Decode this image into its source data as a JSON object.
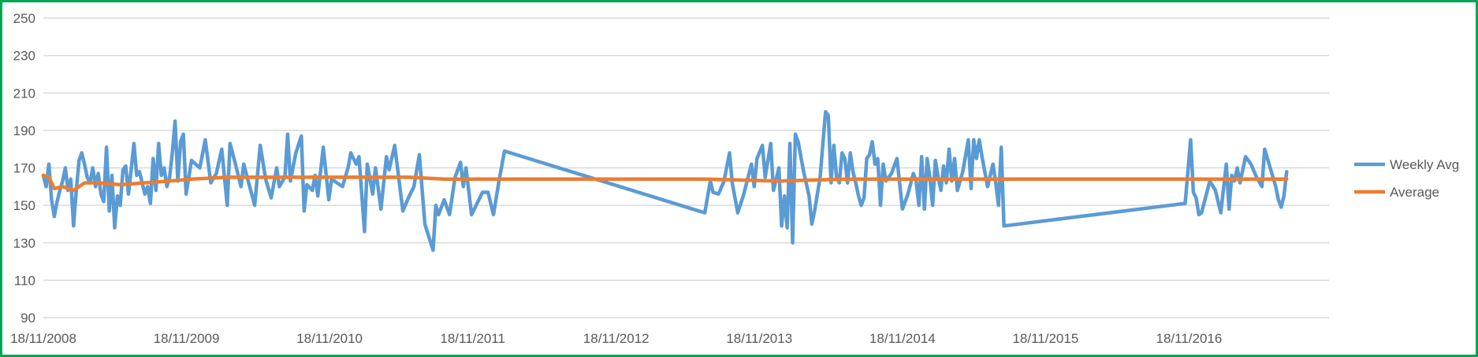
{
  "chart_data": {
    "type": "line",
    "title": "",
    "xlabel": "",
    "ylabel": "",
    "ylim": [
      90,
      250
    ],
    "yticks": [
      90,
      110,
      130,
      150,
      170,
      190,
      210,
      230,
      250
    ],
    "xticks": [
      "18/11/2008",
      "18/11/2009",
      "18/11/2010",
      "18/11/2011",
      "18/11/2012",
      "18/11/2013",
      "18/11/2014",
      "18/11/2015",
      "18/11/2016"
    ],
    "xlim": [
      "2008-11-18",
      "2017-11-10"
    ],
    "grid": true,
    "legend_position": "right",
    "series": [
      {
        "name": "Weekly Avg",
        "color": "#5b9bd5",
        "points": [
          [
            "2008-11-18",
            166
          ],
          [
            "2008-11-25",
            160
          ],
          [
            "2008-12-02",
            172
          ],
          [
            "2008-12-09",
            153
          ],
          [
            "2008-12-16",
            144
          ],
          [
            "2008-12-23",
            152
          ],
          [
            "2008-12-30",
            158
          ],
          [
            "2009-01-06",
            163
          ],
          [
            "2009-01-13",
            170
          ],
          [
            "2009-01-20",
            158
          ],
          [
            "2009-01-27",
            164
          ],
          [
            "2009-02-03",
            139
          ],
          [
            "2009-02-10",
            158
          ],
          [
            "2009-02-17",
            174
          ],
          [
            "2009-02-24",
            178
          ],
          [
            "2009-03-03",
            172
          ],
          [
            "2009-03-10",
            165
          ],
          [
            "2009-03-17",
            162
          ],
          [
            "2009-03-24",
            170
          ],
          [
            "2009-03-31",
            160
          ],
          [
            "2009-04-07",
            167
          ],
          [
            "2009-04-14",
            156
          ],
          [
            "2009-04-21",
            152
          ],
          [
            "2009-04-28",
            181
          ],
          [
            "2009-05-05",
            147
          ],
          [
            "2009-05-12",
            166
          ],
          [
            "2009-05-19",
            138
          ],
          [
            "2009-05-26",
            155
          ],
          [
            "2009-06-02",
            150
          ],
          [
            "2009-06-09",
            169
          ],
          [
            "2009-06-16",
            171
          ],
          [
            "2009-06-23",
            156
          ],
          [
            "2009-06-30",
            169
          ],
          [
            "2009-07-07",
            183
          ],
          [
            "2009-07-14",
            166
          ],
          [
            "2009-07-21",
            168
          ],
          [
            "2009-07-28",
            162
          ],
          [
            "2009-08-04",
            156
          ],
          [
            "2009-08-11",
            160
          ],
          [
            "2009-08-18",
            151
          ],
          [
            "2009-08-25",
            175
          ],
          [
            "2009-09-01",
            158
          ],
          [
            "2009-09-08",
            183
          ],
          [
            "2009-09-15",
            166
          ],
          [
            "2009-09-22",
            170
          ],
          [
            "2009-09-29",
            160
          ],
          [
            "2009-10-06",
            165
          ],
          [
            "2009-10-13",
            178
          ],
          [
            "2009-10-20",
            195
          ],
          [
            "2009-10-27",
            163
          ],
          [
            "2009-11-03",
            184
          ],
          [
            "2009-11-10",
            188
          ],
          [
            "2009-11-17",
            156
          ],
          [
            "2009-12-01",
            174
          ],
          [
            "2009-12-22",
            170
          ],
          [
            "2010-01-05",
            185
          ],
          [
            "2010-01-19",
            162
          ],
          [
            "2010-02-02",
            167
          ],
          [
            "2010-02-16",
            180
          ],
          [
            "2010-03-02",
            150
          ],
          [
            "2010-03-09",
            183
          ],
          [
            "2010-03-23",
            172
          ],
          [
            "2010-04-06",
            160
          ],
          [
            "2010-04-13",
            172
          ],
          [
            "2010-04-27",
            161
          ],
          [
            "2010-05-11",
            150
          ],
          [
            "2010-05-25",
            182
          ],
          [
            "2010-06-08",
            164
          ],
          [
            "2010-06-22",
            154
          ],
          [
            "2010-07-06",
            170
          ],
          [
            "2010-07-13",
            160
          ],
          [
            "2010-07-27",
            165
          ],
          [
            "2010-08-03",
            188
          ],
          [
            "2010-08-10",
            163
          ],
          [
            "2010-08-24",
            178
          ],
          [
            "2010-09-07",
            187
          ],
          [
            "2010-09-14",
            147
          ],
          [
            "2010-09-21",
            161
          ],
          [
            "2010-10-05",
            158
          ],
          [
            "2010-10-12",
            166
          ],
          [
            "2010-10-19",
            155
          ],
          [
            "2010-11-02",
            181
          ],
          [
            "2010-11-16",
            153
          ],
          [
            "2010-11-23",
            164
          ],
          [
            "2010-12-21",
            160
          ],
          [
            "2011-01-04",
            170
          ],
          [
            "2011-01-11",
            178
          ],
          [
            "2011-01-25",
            172
          ],
          [
            "2011-02-01",
            176
          ],
          [
            "2011-02-15",
            136
          ],
          [
            "2011-02-22",
            172
          ],
          [
            "2011-03-08",
            156
          ],
          [
            "2011-03-15",
            170
          ],
          [
            "2011-03-29",
            148
          ],
          [
            "2011-04-12",
            176
          ],
          [
            "2011-04-19",
            169
          ],
          [
            "2011-05-03",
            182
          ],
          [
            "2011-05-24",
            147
          ],
          [
            "2011-06-07",
            154
          ],
          [
            "2011-06-21",
            160
          ],
          [
            "2011-07-05",
            177
          ],
          [
            "2011-07-19",
            140
          ],
          [
            "2011-08-09",
            126
          ],
          [
            "2011-08-16",
            150
          ],
          [
            "2011-08-23",
            145
          ],
          [
            "2011-09-06",
            153
          ],
          [
            "2011-09-20",
            145
          ],
          [
            "2011-10-04",
            165
          ],
          [
            "2011-10-18",
            173
          ],
          [
            "2011-10-25",
            160
          ],
          [
            "2011-11-01",
            170
          ],
          [
            "2011-11-15",
            145
          ],
          [
            "2011-12-13",
            157
          ],
          [
            "2011-12-27",
            157
          ],
          [
            "2012-01-10",
            145
          ],
          [
            "2012-01-24",
            163
          ],
          [
            "2012-02-07",
            179
          ],
          [
            "2013-07-02",
            146
          ],
          [
            "2013-07-16",
            163
          ],
          [
            "2013-07-23",
            157
          ],
          [
            "2013-08-06",
            156
          ],
          [
            "2013-08-20",
            163
          ],
          [
            "2013-09-03",
            178
          ],
          [
            "2013-09-10",
            162
          ],
          [
            "2013-09-24",
            146
          ],
          [
            "2013-10-08",
            155
          ],
          [
            "2013-10-29",
            172
          ],
          [
            "2013-11-05",
            160
          ],
          [
            "2013-11-12",
            175
          ],
          [
            "2013-11-26",
            182
          ],
          [
            "2013-12-03",
            165
          ],
          [
            "2013-12-17",
            183
          ],
          [
            "2013-12-24",
            158
          ],
          [
            "2014-01-07",
            170
          ],
          [
            "2014-01-14",
            139
          ],
          [
            "2014-01-21",
            155
          ],
          [
            "2014-01-28",
            138
          ],
          [
            "2014-02-04",
            183
          ],
          [
            "2014-02-11",
            130
          ],
          [
            "2014-02-18",
            188
          ],
          [
            "2014-02-25",
            184
          ],
          [
            "2014-03-11",
            168
          ],
          [
            "2014-03-25",
            155
          ],
          [
            "2014-04-01",
            140
          ],
          [
            "2014-04-08",
            147
          ],
          [
            "2014-04-22",
            165
          ],
          [
            "2014-05-06",
            200
          ],
          [
            "2014-05-13",
            198
          ],
          [
            "2014-05-20",
            162
          ],
          [
            "2014-05-27",
            182
          ],
          [
            "2014-06-03",
            165
          ],
          [
            "2014-06-10",
            162
          ],
          [
            "2014-06-17",
            178
          ],
          [
            "2014-06-24",
            175
          ],
          [
            "2014-07-01",
            162
          ],
          [
            "2014-07-08",
            178
          ],
          [
            "2014-07-15",
            168
          ],
          [
            "2014-07-22",
            162
          ],
          [
            "2014-07-29",
            155
          ],
          [
            "2014-08-05",
            150
          ],
          [
            "2014-08-12",
            154
          ],
          [
            "2014-08-19",
            175
          ],
          [
            "2014-08-26",
            177
          ],
          [
            "2014-09-02",
            184
          ],
          [
            "2014-09-09",
            172
          ],
          [
            "2014-09-16",
            175
          ],
          [
            "2014-09-23",
            150
          ],
          [
            "2014-09-30",
            172
          ],
          [
            "2014-10-07",
            163
          ],
          [
            "2014-10-21",
            167
          ],
          [
            "2014-11-04",
            175
          ],
          [
            "2014-11-18",
            148
          ],
          [
            "2014-12-02",
            156
          ],
          [
            "2014-12-16",
            167
          ],
          [
            "2014-12-23",
            163
          ],
          [
            "2014-12-30",
            150
          ],
          [
            "2015-01-06",
            176
          ],
          [
            "2015-01-13",
            148
          ],
          [
            "2015-01-20",
            175
          ],
          [
            "2015-01-27",
            165
          ],
          [
            "2015-02-03",
            150
          ],
          [
            "2015-02-10",
            174
          ],
          [
            "2015-02-17",
            165
          ],
          [
            "2015-02-24",
            158
          ],
          [
            "2015-03-03",
            171
          ],
          [
            "2015-03-10",
            162
          ],
          [
            "2015-03-17",
            180
          ],
          [
            "2015-03-24",
            163
          ],
          [
            "2015-03-31",
            175
          ],
          [
            "2015-04-07",
            158
          ],
          [
            "2015-04-21",
            168
          ],
          [
            "2015-05-05",
            185
          ],
          [
            "2015-05-12",
            159
          ],
          [
            "2015-05-19",
            185
          ],
          [
            "2015-05-26",
            175
          ],
          [
            "2015-06-02",
            185
          ],
          [
            "2015-06-09",
            176
          ],
          [
            "2015-06-23",
            160
          ],
          [
            "2015-07-07",
            172
          ],
          [
            "2015-07-14",
            162
          ],
          [
            "2015-07-21",
            150
          ],
          [
            "2015-07-28",
            181
          ],
          [
            "2015-08-04",
            139
          ],
          [
            "2016-11-08",
            151
          ],
          [
            "2016-11-22",
            185
          ],
          [
            "2016-11-29",
            157
          ],
          [
            "2016-12-06",
            154
          ],
          [
            "2016-12-13",
            145
          ],
          [
            "2016-12-20",
            146
          ],
          [
            "2017-01-10",
            163
          ],
          [
            "2017-01-24",
            158
          ],
          [
            "2017-02-07",
            146
          ],
          [
            "2017-02-21",
            172
          ],
          [
            "2017-02-28",
            148
          ],
          [
            "2017-03-07",
            166
          ],
          [
            "2017-03-14",
            163
          ],
          [
            "2017-03-21",
            170
          ],
          [
            "2017-03-28",
            162
          ],
          [
            "2017-04-11",
            176
          ],
          [
            "2017-04-25",
            172
          ],
          [
            "2017-05-09",
            165
          ],
          [
            "2017-05-23",
            160
          ],
          [
            "2017-05-30",
            180
          ],
          [
            "2017-06-13",
            170
          ],
          [
            "2017-06-27",
            160
          ],
          [
            "2017-07-04",
            153
          ],
          [
            "2017-07-11",
            149
          ],
          [
            "2017-07-18",
            155
          ],
          [
            "2017-07-25",
            168
          ]
        ]
      },
      {
        "name": "Average",
        "color": "#ed7d31",
        "points": [
          [
            "2008-11-18",
            166
          ],
          [
            "2008-12-02",
            165
          ],
          [
            "2008-12-16",
            159
          ],
          [
            "2009-01-06",
            160
          ],
          [
            "2009-02-03",
            158
          ],
          [
            "2009-03-03",
            162
          ],
          [
            "2009-04-07",
            162
          ],
          [
            "2009-06-02",
            161
          ],
          [
            "2009-08-04",
            162
          ],
          [
            "2009-10-06",
            163
          ],
          [
            "2009-12-01",
            164
          ],
          [
            "2010-03-02",
            165
          ],
          [
            "2010-06-01",
            165
          ],
          [
            "2010-09-07",
            165
          ],
          [
            "2010-12-07",
            165
          ],
          [
            "2011-03-01",
            165
          ],
          [
            "2011-06-07",
            165
          ],
          [
            "2011-09-06",
            164
          ],
          [
            "2012-02-07",
            164
          ],
          [
            "2013-07-02",
            164
          ],
          [
            "2014-01-07",
            163
          ],
          [
            "2014-07-01",
            164
          ],
          [
            "2015-01-06",
            164
          ],
          [
            "2015-08-04",
            164
          ],
          [
            "2016-11-08",
            164
          ],
          [
            "2017-07-25",
            164
          ]
        ]
      }
    ]
  }
}
